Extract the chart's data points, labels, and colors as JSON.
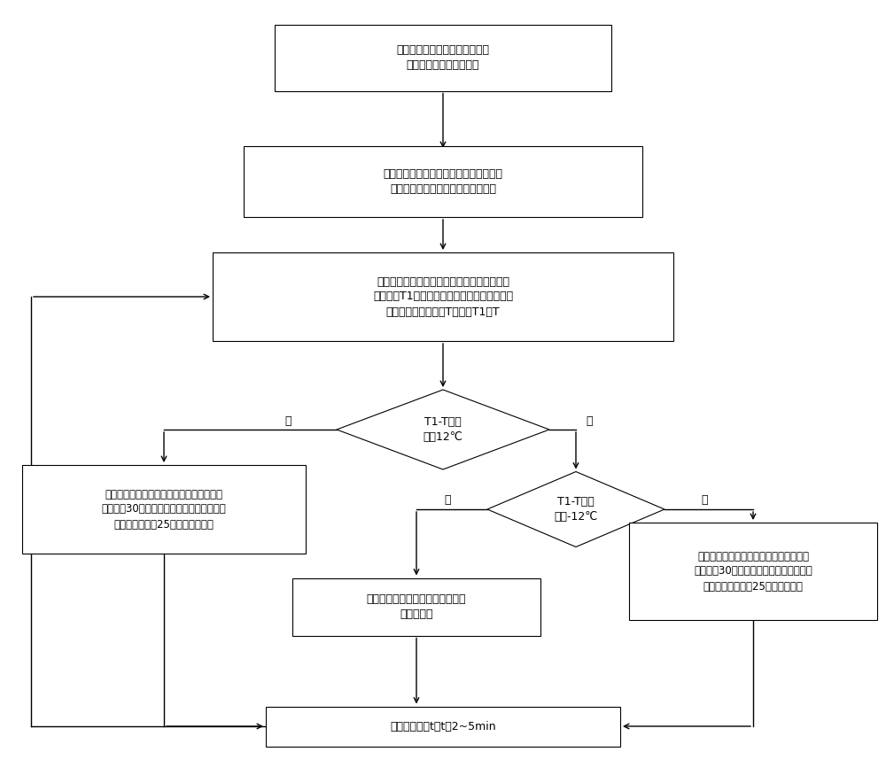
{
  "bg_color": "#ffffff",
  "box_color": "#ffffff",
  "box_edge_color": "#000000",
  "arrow_color": "#000000",
  "text_color": "#000000",
  "font_size": 9,
  "box1_text": "根据工艺要求，确定不同产能对\n应的晶型转变带煅烧温度",
  "box2_text": "根据实际生产产能，确定晶型转变带的长\n度，在晶型转变带上安装温度检测器",
  "box3_text": "检测回转窑的实际产能以及晶型转变带的实际\n煅烧温度T1，根据检测到的实际产能，确定晶\n型转变带的煅烧温度T，比较T1和T",
  "diamond1_text": "T1-T是否\n大于12℃",
  "diamond2_text": "T1-T是否\n小于-12℃",
  "box4_text": "则调节煅烧回转窑的煤气流量在现有值的基\n础上减少30立方米每小时，空气流量在现有\n值的基础上减少25立方米每小时；",
  "box5_text": "煅烧回转窑的煤气流量以及空气流\n量保持不变",
  "box6_text": "调节煅烧回转窑的煤气流量在现有值的基\n础上增加30立方米每小时，空气流量在现\n有值的基础上增加25立方米每小时",
  "box7_text": "间隔时间间隔t，t为2~5min",
  "label_yes1": "是",
  "label_no1": "否",
  "label_no2": "否",
  "label_yes2": "是"
}
